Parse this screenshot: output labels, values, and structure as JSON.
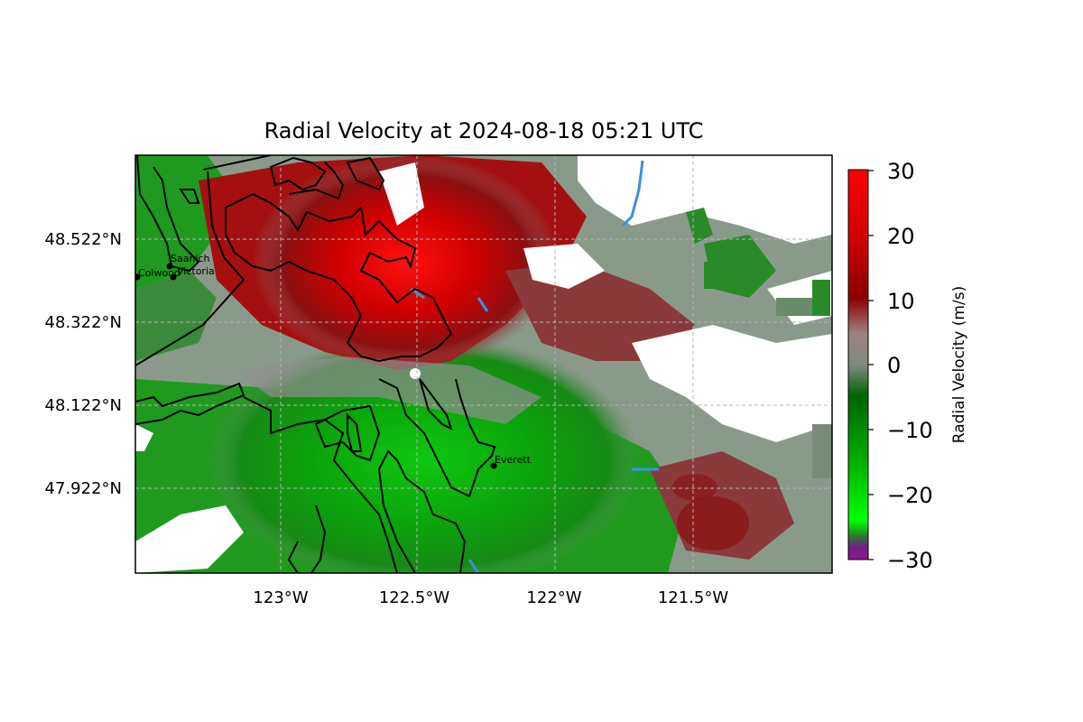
{
  "title": "Radial Velocity at 2024-08-18 05:21 UTC",
  "map": {
    "lon_ticks": [
      "123°W",
      "122.5°W",
      "122°W",
      "121.5°W"
    ],
    "lat_ticks": [
      "48.522°N",
      "48.322°N",
      "48.122°N",
      "47.922°N"
    ],
    "cities": [
      {
        "name": "Saanich"
      },
      {
        "name": "Victoria"
      },
      {
        "name": "Colwood"
      },
      {
        "name": "Everett"
      }
    ]
  },
  "colorbar": {
    "label": "Radial Velocity (m/s)",
    "ticks": [
      "30",
      "20",
      "10",
      "0",
      "−10",
      "−20",
      "−30"
    ],
    "min": -30,
    "max": 30,
    "colors": {
      "min": "#8a1a8a",
      "neg": "#00ff00",
      "mid": "#7f8f7f",
      "pos": "#a00000",
      "max": "#ff0000"
    }
  }
}
